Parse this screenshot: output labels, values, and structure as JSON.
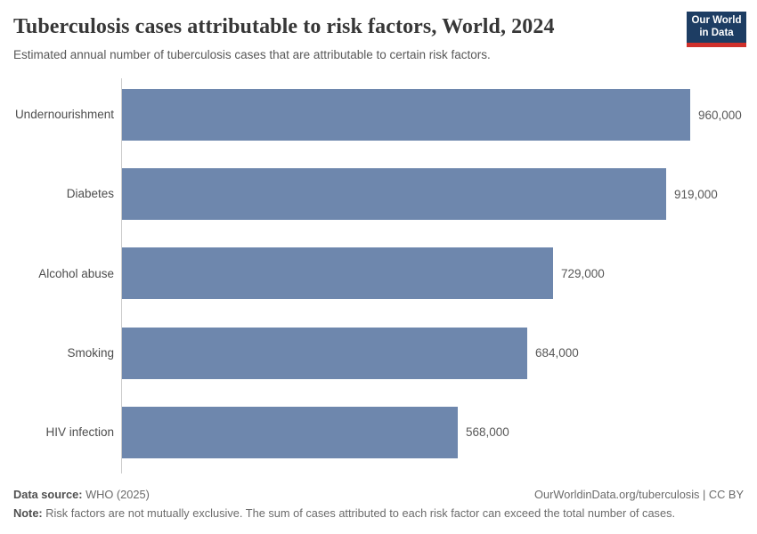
{
  "header": {
    "title": "Tuberculosis cases attributable to risk factors, World, 2024",
    "subtitle": "Estimated annual number of tuberculosis cases that are attributable to certain risk factors.",
    "logo": {
      "line1": "Our World",
      "line2": "in Data"
    }
  },
  "chart_data": {
    "type": "bar",
    "orientation": "horizontal",
    "title": "Tuberculosis cases attributable to risk factors, World, 2024",
    "categories": [
      "Undernourishment",
      "Diabetes",
      "Alcohol abuse",
      "Smoking",
      "HIV infection"
    ],
    "values": [
      960000,
      919000,
      729000,
      684000,
      568000
    ],
    "value_labels": [
      "960,000",
      "919,000",
      "729,000",
      "684,000",
      "568,000"
    ],
    "xlim": [
      0,
      960000
    ],
    "grid": false,
    "legend": "none",
    "bar_color": "#6e87ad"
  },
  "footer": {
    "data_source_label": "Data source:",
    "data_source_value": " WHO (2025)",
    "link": "OurWorldinData.org/tuberculosis | CC BY",
    "note_label": "Note:",
    "note_value": " Risk factors are not mutually exclusive. The sum of cases attributed to each risk factor can exceed the total number of cases."
  },
  "colors": {
    "bar": "#6e87ad",
    "axis_line": "#cbcbcb",
    "title_text": "#373737",
    "subtitle_text": "#575757",
    "logo_background": "#1d3d63",
    "logo_accent": "#cf302b"
  }
}
